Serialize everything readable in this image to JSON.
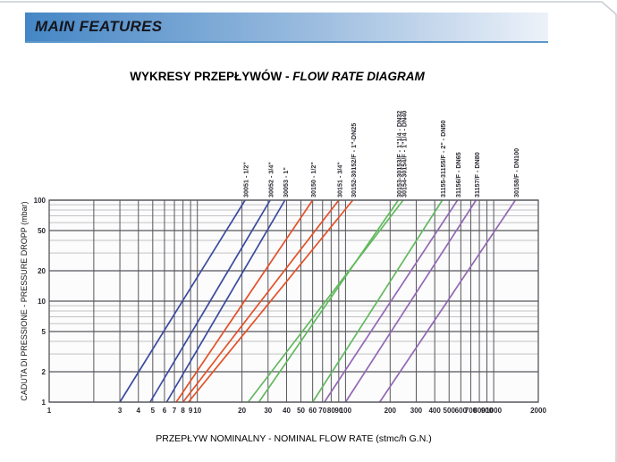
{
  "header": {
    "title": "MAIN FEATURES"
  },
  "title": {
    "normal": "WYKRESY PRZEPŁYWÓW - ",
    "italic": "FLOW RATE DIAGRAM"
  },
  "chart_data": {
    "type": "line",
    "scale": "log-log",
    "title": "WYKRESY PRZEPŁYWÓW - FLOW RATE DIAGRAM",
    "xlabel": "PRZEPŁYW NOMINALNY - NOMINAL FLOW RATE (stmc/h G.N.)",
    "ylabel": "CADUTA DI PRESSIONE - PRESSURE DROPP (mbar)",
    "xlim": [
      1,
      2000
    ],
    "ylim": [
      1,
      100
    ],
    "grid": "on",
    "x_gridlines": [
      1,
      2,
      3,
      4,
      5,
      6,
      7,
      8,
      9,
      10,
      20,
      30,
      40,
      50,
      60,
      70,
      80,
      90,
      100,
      200,
      300,
      400,
      500,
      600,
      700,
      800,
      900,
      1000,
      2000
    ],
    "x_tick_labels": [
      1,
      3,
      4,
      5,
      6,
      7,
      8,
      9,
      10,
      20,
      30,
      40,
      50,
      60,
      70,
      80,
      90,
      100,
      200,
      300,
      400,
      500,
      600,
      700,
      800,
      900,
      1000,
      2000
    ],
    "y_major_gridlines": [
      1,
      2,
      5,
      10,
      20,
      50,
      100
    ],
    "y_minor_gridlines": [
      3,
      4,
      6,
      7,
      8,
      9,
      30,
      40,
      60,
      70,
      80,
      90
    ],
    "y_tick_labels": [
      100,
      50,
      20,
      10,
      5,
      2,
      1
    ],
    "colors": {
      "blue": "#3a4a9f",
      "red": "#e2512a",
      "green": "#62b95e",
      "purple": "#9268b5",
      "grid_dark": "#55565c",
      "grid_light": "#c2c2c6",
      "text": "#26262e",
      "plot_bg": "#fcfcfc"
    },
    "series": [
      {
        "label": "30051 - 1/2\"",
        "color": "blue",
        "points_flow_vs_mbar": [
          [
            3.0,
            1
          ],
          [
            21,
            100
          ]
        ]
      },
      {
        "label": "30052 - 3/4\"",
        "color": "blue",
        "points_flow_vs_mbar": [
          [
            4.8,
            1
          ],
          [
            31,
            100
          ]
        ]
      },
      {
        "label": "30053 - 1\"",
        "color": "blue",
        "points_flow_vs_mbar": [
          [
            6.2,
            1
          ],
          [
            39,
            100
          ]
        ]
      },
      {
        "label": "30150 - 1/2\"",
        "color": "red",
        "points_flow_vs_mbar": [
          [
            7.2,
            1
          ],
          [
            60,
            100
          ]
        ]
      },
      {
        "label": "30151 - 3/4\"",
        "color": "red",
        "points_flow_vs_mbar": [
          [
            8.0,
            1
          ],
          [
            90,
            100
          ]
        ]
      },
      {
        "label": "30152-30152/F - 1\"-DN25",
        "color": "red",
        "points_flow_vs_mbar": [
          [
            8.7,
            1
          ],
          [
            112,
            100
          ]
        ]
      },
      {
        "label": "30153-30153/F - 1\"1/4 - DN32",
        "color": "green",
        "points_flow_vs_mbar": [
          [
            26,
            1
          ],
          [
            227,
            100
          ]
        ]
      },
      {
        "label": "30154-30154/F - 1\"1/4 - DN40",
        "color": "green",
        "points_flow_vs_mbar": [
          [
            22,
            1
          ],
          [
            245,
            100
          ]
        ]
      },
      {
        "label": "31155-31155/F - 2\" - DN50",
        "color": "green",
        "points_flow_vs_mbar": [
          [
            60,
            1
          ],
          [
            450,
            100
          ]
        ]
      },
      {
        "label": "31156/F - DN65",
        "color": "purple",
        "points_flow_vs_mbar": [
          [
            72,
            1
          ],
          [
            570,
            100
          ]
        ]
      },
      {
        "label": "31157/F - DN80",
        "color": "purple",
        "points_flow_vs_mbar": [
          [
            100,
            1
          ],
          [
            760,
            100
          ]
        ]
      },
      {
        "label": "30158/F - DN100",
        "color": "purple",
        "points_flow_vs_mbar": [
          [
            170,
            1
          ],
          [
            1400,
            100
          ]
        ]
      }
    ]
  }
}
